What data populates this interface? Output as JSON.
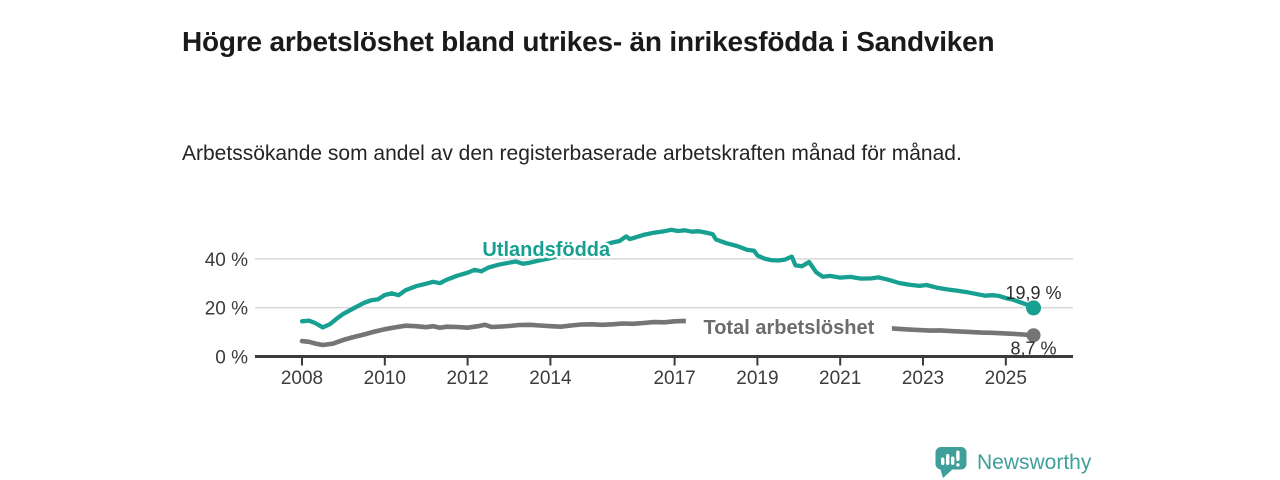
{
  "chart_data": {
    "type": "line",
    "title": "Högre arbetslöshet bland utrikes- än inrikesfödda i Sandviken",
    "subtitle": "Arbetssökande som andel av den registerbaserade arbetskraften månad för månad.",
    "x_unit": "decimal_year",
    "xlim": [
      2006.85,
      2026.6
    ],
    "ylim": [
      0,
      55
    ],
    "grid": true,
    "legend_position": "inline-labels",
    "x_ticks": [
      {
        "x": 2008,
        "label": "2008"
      },
      {
        "x": 2010,
        "label": "2010"
      },
      {
        "x": 2012,
        "label": "2012"
      },
      {
        "x": 2014,
        "label": "2014"
      },
      {
        "x": 2017,
        "label": "2017"
      },
      {
        "x": 2019,
        "label": "2019"
      },
      {
        "x": 2021,
        "label": "2021"
      },
      {
        "x": 2023,
        "label": "2023"
      },
      {
        "x": 2025,
        "label": "2025"
      }
    ],
    "y_ticks": [
      {
        "v": 0,
        "label": "0 %"
      },
      {
        "v": 20,
        "label": "20 %"
      },
      {
        "v": 40,
        "label": "40 %"
      }
    ],
    "series": [
      {
        "id": "utlandsfodda",
        "name": "Utlandsfödda",
        "color": "#17a091",
        "label_color": "#17a091",
        "end_label": "19,9 %",
        "end_value": 19.9,
        "label_pos": {
          "x": 2013.9,
          "v": 44.0
        },
        "points": [
          [
            2008.0,
            14.4
          ],
          [
            2008.17,
            14.7
          ],
          [
            2008.33,
            13.6
          ],
          [
            2008.5,
            11.9
          ],
          [
            2008.67,
            13.2
          ],
          [
            2008.83,
            15.4
          ],
          [
            2009.0,
            17.5
          ],
          [
            2009.25,
            19.8
          ],
          [
            2009.5,
            22.0
          ],
          [
            2009.67,
            23.0
          ],
          [
            2009.83,
            23.4
          ],
          [
            2010.0,
            25.2
          ],
          [
            2010.17,
            25.9
          ],
          [
            2010.33,
            25.1
          ],
          [
            2010.5,
            27.1
          ],
          [
            2010.75,
            28.8
          ],
          [
            2011.0,
            29.8
          ],
          [
            2011.17,
            30.6
          ],
          [
            2011.33,
            30.0
          ],
          [
            2011.5,
            31.5
          ],
          [
            2011.75,
            33.1
          ],
          [
            2012.0,
            34.3
          ],
          [
            2012.17,
            35.5
          ],
          [
            2012.33,
            34.9
          ],
          [
            2012.5,
            36.4
          ],
          [
            2012.75,
            37.6
          ],
          [
            2013.0,
            38.4
          ],
          [
            2013.17,
            38.9
          ],
          [
            2013.33,
            38.0
          ],
          [
            2013.5,
            38.4
          ],
          [
            2013.75,
            39.4
          ],
          [
            2014.0,
            40.3
          ],
          [
            2014.25,
            41.4
          ],
          [
            2014.5,
            42.5
          ],
          [
            2014.75,
            43.6
          ],
          [
            2015.0,
            44.4
          ],
          [
            2015.25,
            45.5
          ],
          [
            2015.5,
            46.7
          ],
          [
            2015.67,
            47.3
          ],
          [
            2015.83,
            49.2
          ],
          [
            2015.92,
            48.1
          ],
          [
            2016.08,
            48.9
          ],
          [
            2016.25,
            49.8
          ],
          [
            2016.5,
            50.7
          ],
          [
            2016.75,
            51.3
          ],
          [
            2016.92,
            51.9
          ],
          [
            2017.08,
            51.4
          ],
          [
            2017.25,
            51.7
          ],
          [
            2017.42,
            51.1
          ],
          [
            2017.58,
            51.3
          ],
          [
            2017.75,
            50.8
          ],
          [
            2017.92,
            50.1
          ],
          [
            2018.0,
            47.9
          ],
          [
            2018.25,
            46.4
          ],
          [
            2018.5,
            45.3
          ],
          [
            2018.75,
            43.7
          ],
          [
            2018.92,
            43.3
          ],
          [
            2019.0,
            41.4
          ],
          [
            2019.17,
            40.1
          ],
          [
            2019.33,
            39.5
          ],
          [
            2019.5,
            39.3
          ],
          [
            2019.67,
            39.7
          ],
          [
            2019.83,
            40.9
          ],
          [
            2019.92,
            37.3
          ],
          [
            2020.08,
            37.0
          ],
          [
            2020.25,
            38.7
          ],
          [
            2020.42,
            34.5
          ],
          [
            2020.58,
            32.7
          ],
          [
            2020.75,
            33.0
          ],
          [
            2021.0,
            32.3
          ],
          [
            2021.25,
            32.6
          ],
          [
            2021.5,
            31.9
          ],
          [
            2021.75,
            32.0
          ],
          [
            2021.92,
            32.4
          ],
          [
            2022.17,
            31.4
          ],
          [
            2022.42,
            30.1
          ],
          [
            2022.67,
            29.4
          ],
          [
            2022.92,
            28.9
          ],
          [
            2023.08,
            29.3
          ],
          [
            2023.33,
            28.2
          ],
          [
            2023.58,
            27.5
          ],
          [
            2023.83,
            26.9
          ],
          [
            2024.08,
            26.3
          ],
          [
            2024.25,
            25.7
          ],
          [
            2024.5,
            24.9
          ],
          [
            2024.67,
            25.1
          ],
          [
            2024.83,
            24.8
          ],
          [
            2025.0,
            23.9
          ],
          [
            2025.17,
            23.3
          ],
          [
            2025.42,
            21.8
          ],
          [
            2025.58,
            20.8
          ],
          [
            2025.67,
            19.9
          ]
        ]
      },
      {
        "id": "total",
        "name": "Total arbetslöshet",
        "color": "#757575",
        "label_color": "#6c6c6c",
        "end_label": "8,7 %",
        "end_value": 8.7,
        "label_pos": {
          "x": 2019.76,
          "v": 12.1
        },
        "points": [
          [
            2008.0,
            6.3
          ],
          [
            2008.17,
            6.0
          ],
          [
            2008.33,
            5.3
          ],
          [
            2008.5,
            4.7
          ],
          [
            2008.75,
            5.3
          ],
          [
            2009.0,
            6.8
          ],
          [
            2009.25,
            8.0
          ],
          [
            2009.5,
            9.0
          ],
          [
            2009.75,
            10.2
          ],
          [
            2010.0,
            11.2
          ],
          [
            2010.25,
            11.9
          ],
          [
            2010.5,
            12.6
          ],
          [
            2010.75,
            12.4
          ],
          [
            2011.0,
            12.0
          ],
          [
            2011.17,
            12.4
          ],
          [
            2011.33,
            11.8
          ],
          [
            2011.5,
            12.2
          ],
          [
            2011.75,
            12.1
          ],
          [
            2012.0,
            11.8
          ],
          [
            2012.25,
            12.4
          ],
          [
            2012.42,
            13.0
          ],
          [
            2012.58,
            12.1
          ],
          [
            2012.83,
            12.3
          ],
          [
            2013.0,
            12.5
          ],
          [
            2013.25,
            12.9
          ],
          [
            2013.5,
            13.0
          ],
          [
            2013.75,
            12.7
          ],
          [
            2014.0,
            12.4
          ],
          [
            2014.25,
            12.2
          ],
          [
            2014.5,
            12.7
          ],
          [
            2014.75,
            13.1
          ],
          [
            2015.0,
            13.2
          ],
          [
            2015.25,
            13.0
          ],
          [
            2015.5,
            13.2
          ],
          [
            2015.75,
            13.5
          ],
          [
            2016.0,
            13.4
          ],
          [
            2016.25,
            13.7
          ],
          [
            2016.5,
            14.1
          ],
          [
            2016.75,
            14.0
          ],
          [
            2017.0,
            14.4
          ],
          [
            2017.25,
            14.6
          ],
          [
            2017.5,
            14.3
          ],
          [
            2017.75,
            14.0
          ],
          [
            2018.0,
            13.6
          ],
          [
            2018.5,
            13.0
          ],
          [
            2019.0,
            12.5
          ],
          [
            2019.5,
            12.2
          ],
          [
            2020.0,
            12.0
          ],
          [
            2020.5,
            12.4
          ],
          [
            2021.0,
            12.2
          ],
          [
            2021.5,
            11.8
          ],
          [
            2022.0,
            11.4
          ],
          [
            2022.17,
            11.6
          ],
          [
            2022.42,
            11.3
          ],
          [
            2022.67,
            11.0
          ],
          [
            2022.92,
            10.8
          ],
          [
            2023.17,
            10.6
          ],
          [
            2023.42,
            10.7
          ],
          [
            2023.67,
            10.4
          ],
          [
            2023.92,
            10.2
          ],
          [
            2024.17,
            10.0
          ],
          [
            2024.42,
            9.8
          ],
          [
            2024.67,
            9.7
          ],
          [
            2024.92,
            9.5
          ],
          [
            2025.17,
            9.3
          ],
          [
            2025.42,
            9.0
          ],
          [
            2025.67,
            8.7
          ]
        ]
      }
    ]
  },
  "footer": {
    "brand": "Newsworthy",
    "brand_color": "#3f9f9a",
    "logo_icon": "bar-chart-pin-icon"
  }
}
